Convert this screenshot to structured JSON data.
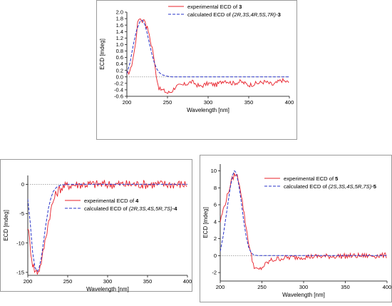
{
  "chart_data": [
    {
      "id": "top",
      "type": "line",
      "xlabel": "Wavelength [nm]",
      "ylabel": "ECD [mdeg]",
      "xlim": [
        200,
        400
      ],
      "ylim": [
        -0.6,
        2.0
      ],
      "xticks": [
        200,
        250,
        300,
        350,
        400
      ],
      "yticks": [
        -0.6,
        -0.4,
        -0.2,
        0.0,
        0.2,
        0.4,
        0.6,
        0.8,
        1.0,
        1.2,
        1.4,
        1.6,
        1.8,
        2.0
      ],
      "ytick_labels": [
        "-0.6",
        "-0.4",
        "-0.2",
        "0.0",
        "0.2",
        "0.4",
        "0.6",
        "0.8",
        "1.0",
        "1.2",
        "1.4",
        "1.6",
        "1.8",
        "2.0"
      ],
      "zero_line": true,
      "legend": {
        "position": "top-right",
        "entries": [
          {
            "prefix": "experimental ECD of ",
            "config": "",
            "compound": "3",
            "style": "solid"
          },
          {
            "prefix": "calculated ECD of ",
            "config": "(2R,3S,4R,5S,7R)-",
            "compound": "3",
            "style": "dashed"
          }
        ]
      },
      "series": [
        {
          "style": "solid",
          "color": "#e8202a",
          "x": [
            200,
            205,
            210,
            213,
            215,
            218,
            220,
            222,
            224,
            226,
            228,
            230,
            232,
            234,
            236,
            238,
            240,
            245,
            250,
            255,
            260,
            270,
            280,
            290,
            300,
            310,
            320,
            330,
            340,
            350,
            360,
            370,
            380,
            390,
            400
          ],
          "y": [
            0.05,
            0.25,
            0.9,
            1.6,
            1.85,
            1.75,
            1.72,
            1.8,
            1.55,
            1.5,
            1.2,
            1.0,
            0.85,
            0.4,
            0.1,
            -0.2,
            -0.38,
            -0.42,
            -0.5,
            -0.45,
            -0.3,
            -0.25,
            -0.15,
            -0.3,
            -0.2,
            -0.25,
            -0.1,
            -0.2,
            -0.15,
            -0.25,
            -0.2,
            -0.15,
            -0.25,
            -0.1,
            -0.18
          ],
          "noise": 0.07
        },
        {
          "style": "dashed",
          "color": "#2a34c8",
          "x": [
            200,
            204,
            208,
            212,
            216,
            219,
            222,
            225,
            228,
            231,
            234,
            237,
            240,
            244,
            248,
            252,
            256,
            260,
            270,
            300,
            400
          ],
          "y": [
            0.1,
            0.45,
            1.0,
            1.45,
            1.7,
            1.75,
            1.62,
            1.35,
            1.0,
            0.68,
            0.42,
            0.24,
            0.13,
            0.06,
            0.03,
            0.01,
            0.0,
            0.0,
            0.0,
            0.0,
            0.0
          ],
          "noise": 0
        }
      ]
    },
    {
      "id": "left",
      "type": "line",
      "xlabel": "Wavelength [nm]",
      "ylabel": "ECD [mdeg]",
      "xlim": [
        200,
        400
      ],
      "ylim": [
        -15.5,
        1.5
      ],
      "xticks": [
        200,
        250,
        300,
        350,
        400
      ],
      "yticks": [
        -15,
        -10,
        -5,
        0
      ],
      "ytick_labels": [
        "-15",
        "-10",
        "-5",
        "0"
      ],
      "zero_line": true,
      "legend": {
        "position": "center-right",
        "entries": [
          {
            "prefix": "experimental ECD of ",
            "config": "",
            "compound": "4",
            "style": "solid"
          },
          {
            "prefix": "calculated ECD of ",
            "config": "(2R,3S,4S,5R,7S)-",
            "compound": "4",
            "style": "dashed"
          }
        ]
      },
      "series": [
        {
          "style": "solid",
          "color": "#e8202a",
          "x": [
            200,
            203,
            206,
            209,
            212,
            215,
            218,
            221,
            224,
            227,
            230,
            233,
            236,
            240,
            245,
            250,
            255,
            260,
            270,
            280,
            300,
            400
          ],
          "y": [
            -7,
            -10.5,
            -13.5,
            -14.8,
            -14.9,
            -14.2,
            -12.5,
            -10.2,
            -7.8,
            -5.6,
            -3.8,
            -2.4,
            -1.5,
            -0.8,
            -0.4,
            -0.2,
            -0.1,
            -0.05,
            0.0,
            0.0,
            0.0,
            0.0
          ],
          "noise": 0.12
        },
        {
          "style": "dashed",
          "color": "#2a34c8",
          "x": [
            200,
            203,
            206,
            209,
            212,
            214,
            217,
            220,
            223,
            226,
            229,
            232,
            236,
            240,
            245,
            250,
            260,
            280,
            400
          ],
          "y": [
            -2.5,
            -6.5,
            -11.5,
            -14.2,
            -14.8,
            -14.3,
            -12.5,
            -9.5,
            -6.5,
            -4.0,
            -2.3,
            -1.2,
            -0.5,
            -0.2,
            -0.08,
            0.0,
            0.0,
            0.0,
            0.0
          ],
          "noise": 0
        }
      ]
    },
    {
      "id": "right",
      "type": "line",
      "xlabel": "Wavelength [nm]",
      "ylabel": "ECD [mdeg]",
      "xlim": [
        200,
        400
      ],
      "ylim": [
        -3.0,
        10.8
      ],
      "xticks": [
        200,
        250,
        300,
        350,
        400
      ],
      "yticks": [
        -2,
        0,
        2,
        4,
        6,
        8,
        10
      ],
      "ytick_labels": [
        "-2",
        "0",
        "2",
        "4",
        "6",
        "8",
        "10"
      ],
      "zero_line": true,
      "legend": {
        "position": "top-right",
        "entries": [
          {
            "prefix": "experimental ECD of ",
            "config": "",
            "compound": "5",
            "style": "solid"
          },
          {
            "prefix": "calculated ECD of ",
            "config": "(2S,3S,4S,5R,7S)-",
            "compound": "5",
            "style": "dashed"
          }
        ]
      },
      "series": [
        {
          "style": "solid",
          "color": "#e8202a",
          "x": [
            200,
            203,
            206,
            209,
            212,
            215,
            218,
            221,
            224,
            227,
            230,
            233,
            236,
            239,
            242,
            245,
            248,
            250,
            255,
            260,
            270,
            280,
            300,
            320,
            350,
            400
          ],
          "y": [
            4.0,
            5.2,
            6.2,
            7.2,
            8.3,
            9.2,
            9.6,
            9.3,
            8.0,
            6.0,
            4.0,
            2.2,
            0.5,
            -0.8,
            -1.5,
            -1.75,
            -1.6,
            -1.4,
            -1.0,
            -0.6,
            -0.35,
            -0.25,
            -0.15,
            -0.1,
            -0.05,
            0.0
          ],
          "noise": 0.06
        },
        {
          "style": "dashed",
          "color": "#2a34c8",
          "x": [
            200,
            203,
            206,
            209,
            212,
            215,
            217,
            219,
            222,
            225,
            228,
            231,
            234,
            237,
            240,
            244,
            248,
            255,
            270,
            400
          ],
          "y": [
            0.5,
            2.0,
            4.0,
            6.0,
            8.0,
            9.5,
            10.0,
            9.8,
            8.5,
            6.5,
            4.2,
            2.3,
            1.0,
            0.35,
            0.1,
            0.02,
            0.0,
            0.0,
            0.0,
            0.0
          ],
          "noise": 0
        }
      ]
    }
  ]
}
